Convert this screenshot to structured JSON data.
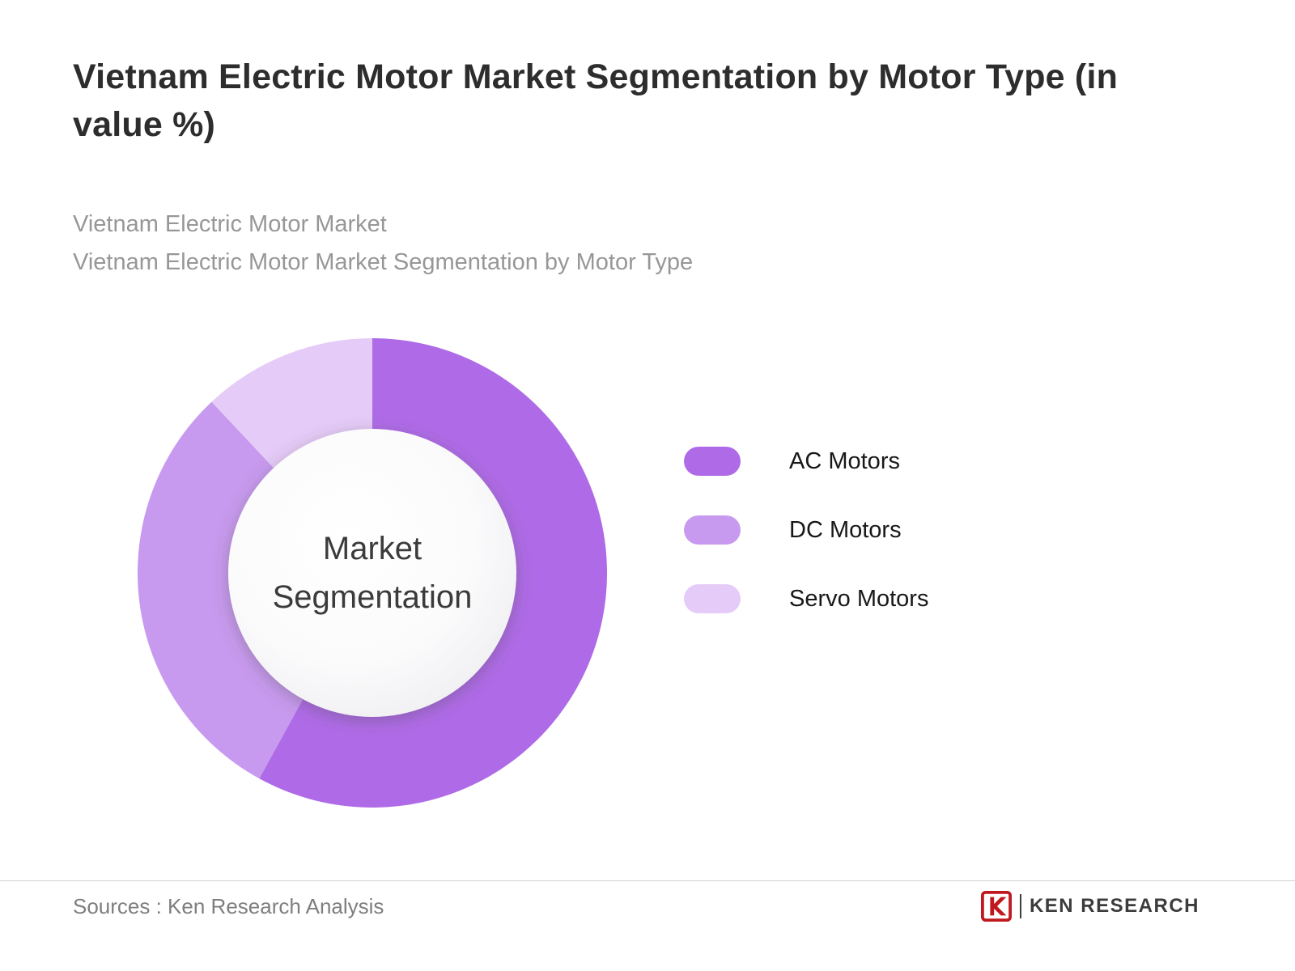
{
  "page": {
    "title": "Vietnam Electric Motor Market Segmentation by Motor Type (in value %)",
    "subtitle_lines": [
      "Vietnam Electric Motor Market",
      "Vietnam Electric Motor Market Segmentation by Motor Type"
    ],
    "footer": {
      "sources": "Sources : Ken Research Analysis",
      "logo_text": "KEN RESEARCH",
      "logo_color": "#C0181F"
    }
  },
  "chart_data": {
    "type": "pie",
    "donut": true,
    "title": "Vietnam Electric Motor Market Segmentation by Motor Type (in value %)",
    "center_label": "Market Segmentation",
    "categories": [
      "AC Motors",
      "DC Motors",
      "Servo Motors"
    ],
    "values": [
      58,
      30,
      12
    ],
    "colors": [
      "#AF6BE7",
      "#C89AEF",
      "#E5CBF8"
    ],
    "legend_position": "right",
    "start_angle_deg": -90,
    "direction": "clockwise"
  }
}
